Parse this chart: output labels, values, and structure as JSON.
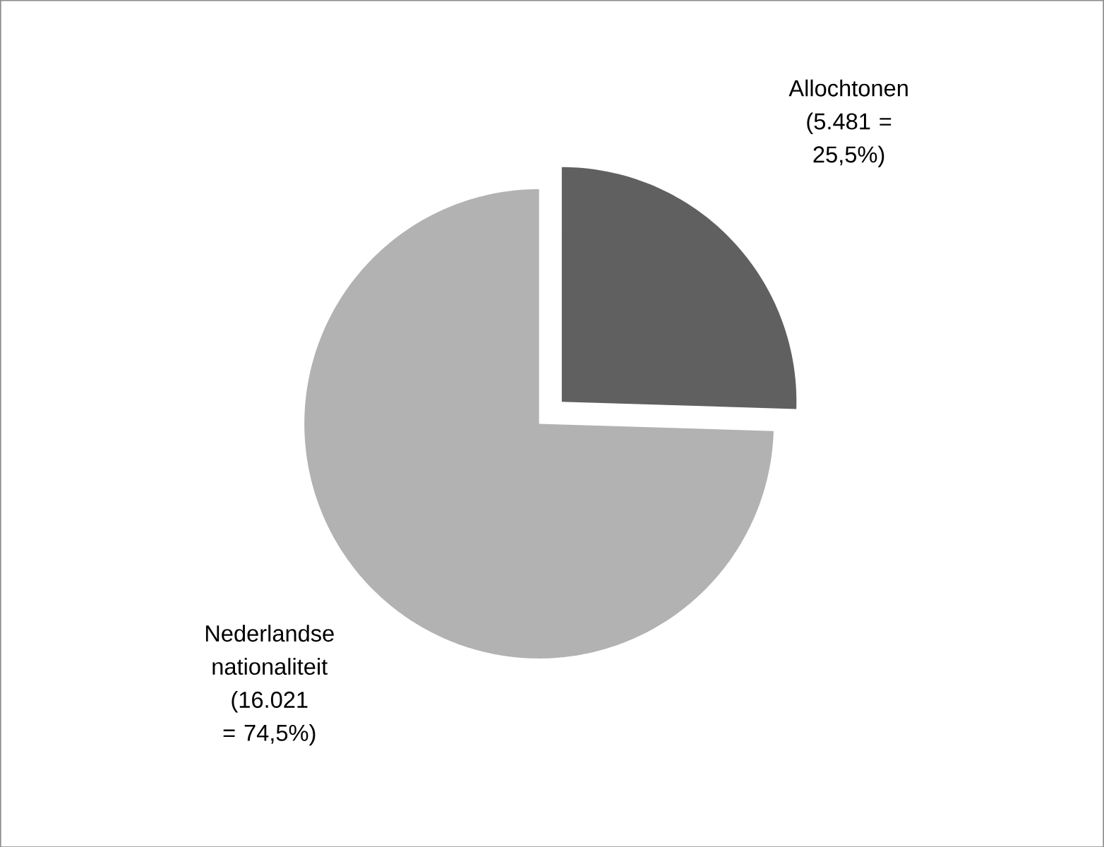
{
  "chart_data": {
    "type": "pie",
    "categories": [
      "Allochtonen",
      "Nederlandse nationaliteit"
    ],
    "values": [
      5481,
      16021
    ],
    "value_labels": [
      "(5.481 = 25,5%)",
      "(16.021 = 74,5%)"
    ],
    "colors": [
      "#606060",
      "#b2b2b2"
    ]
  }
}
